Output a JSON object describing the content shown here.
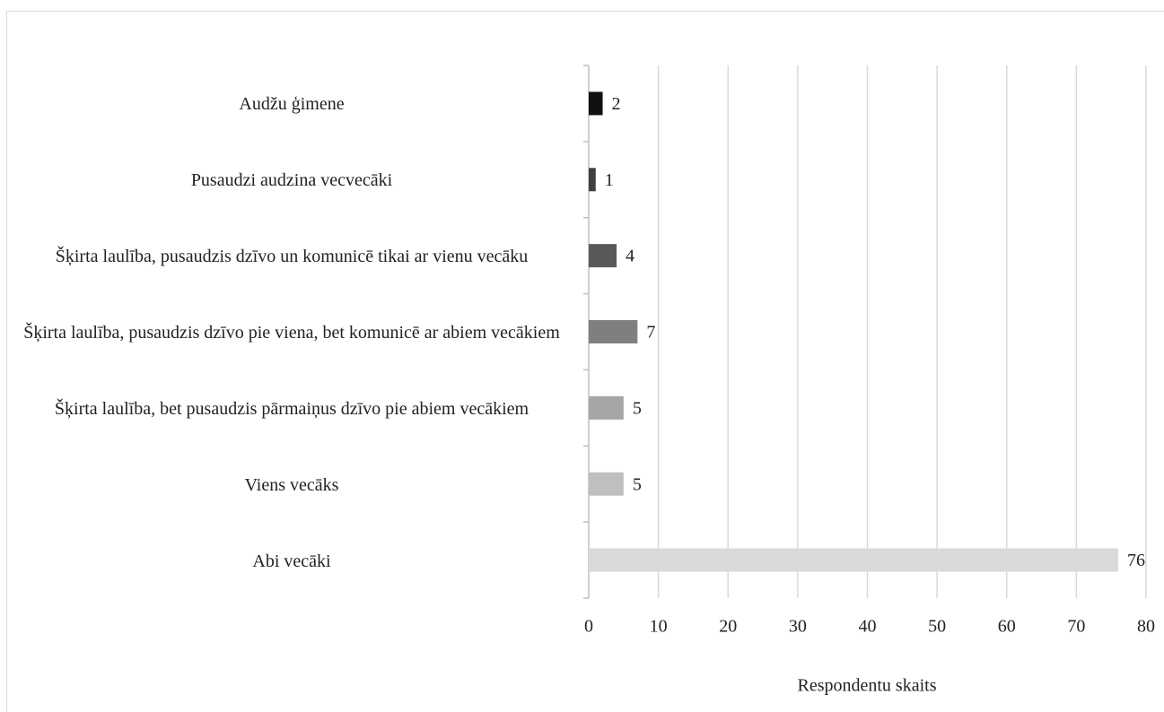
{
  "chart_data": {
    "type": "bar",
    "orientation": "horizontal",
    "categories": [
      "Audžu ģimene",
      "Pusaudzi audzina vecvecāki",
      "Šķirta laulība, pusaudzis dzīvo un komunicē tikai ar vienu vecāku",
      "Šķirta laulība, pusaudzis dzīvo pie viena, bet komunicē ar abiem vecākiem",
      "Šķirta laulība, bet pusaudzis pārmaiņus dzīvo pie abiem vecākiem",
      "Viens vecāks",
      "Abi vecāki"
    ],
    "values": [
      2,
      1,
      4,
      7,
      5,
      5,
      76
    ],
    "colors": [
      "#111111",
      "#404040",
      "#595959",
      "#7f7f7f",
      "#a6a6a6",
      "#bfbfbf",
      "#d9d9d9"
    ],
    "xlabel": "Respondentu skaits",
    "xlim": [
      0,
      80
    ],
    "xticks": [
      0,
      10,
      20,
      30,
      40,
      50,
      60,
      70,
      80
    ],
    "grid": true
  }
}
